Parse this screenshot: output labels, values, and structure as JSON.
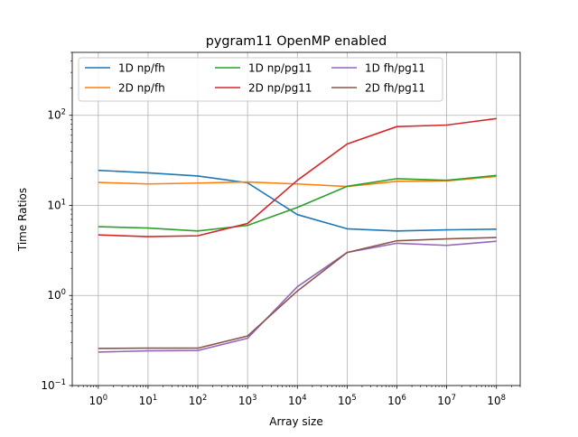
{
  "chart_data": {
    "type": "line",
    "title": "pygram11 OpenMP enabled",
    "xlabel": "Array size",
    "ylabel": "Time Ratios",
    "xscale": "log",
    "yscale": "log",
    "xlim": [
      0.3,
      300000000
    ],
    "ylim": [
      0.1,
      500
    ],
    "grid": true,
    "legend_position": "top",
    "legend_columns": 3,
    "x": [
      1,
      10,
      100,
      1000,
      10000,
      100000,
      1000000,
      10000000,
      100000000
    ],
    "x_tick_labels": [
      {
        "base": "10",
        "exp": "0"
      },
      {
        "base": "10",
        "exp": "1"
      },
      {
        "base": "10",
        "exp": "2"
      },
      {
        "base": "10",
        "exp": "3"
      },
      {
        "base": "10",
        "exp": "4"
      },
      {
        "base": "10",
        "exp": "5"
      },
      {
        "base": "10",
        "exp": "6"
      },
      {
        "base": "10",
        "exp": "7"
      },
      {
        "base": "10",
        "exp": "8"
      }
    ],
    "y_ticks": [
      0.1,
      1,
      10,
      100
    ],
    "y_tick_labels": [
      {
        "base": "10",
        "exp": "−1"
      },
      {
        "base": "10",
        "exp": "0"
      },
      {
        "base": "10",
        "exp": "1"
      },
      {
        "base": "10",
        "exp": "2"
      }
    ],
    "series": [
      {
        "name": "1D np/fh",
        "color": "#1f77b4",
        "values": [
          24.5,
          23,
          21.2,
          17.8,
          7.9,
          5.5,
          5.2,
          5.35,
          5.45
        ]
      },
      {
        "name": "2D np/fh",
        "color": "#ff7f0e",
        "values": [
          18,
          17.3,
          17.7,
          18.2,
          17.3,
          16.2,
          18.5,
          18.7,
          21
        ]
      },
      {
        "name": "1D np/pg11",
        "color": "#2ca02c",
        "values": [
          5.8,
          5.6,
          5.2,
          6.0,
          9.5,
          16.3,
          19.8,
          19.0,
          21.5
        ]
      },
      {
        "name": "2D np/pg11",
        "color": "#d62728",
        "values": [
          4.7,
          4.5,
          4.6,
          6.3,
          19,
          48,
          75,
          78,
          92
        ]
      },
      {
        "name": "1D fh/pg11",
        "color": "#9467bd",
        "values": [
          0.235,
          0.243,
          0.245,
          0.335,
          1.25,
          3.0,
          3.8,
          3.6,
          4.0
        ]
      },
      {
        "name": "2D fh/pg11",
        "color": "#8c564b",
        "values": [
          0.258,
          0.26,
          0.26,
          0.355,
          1.12,
          3.0,
          4.05,
          4.25,
          4.4
        ]
      }
    ]
  }
}
